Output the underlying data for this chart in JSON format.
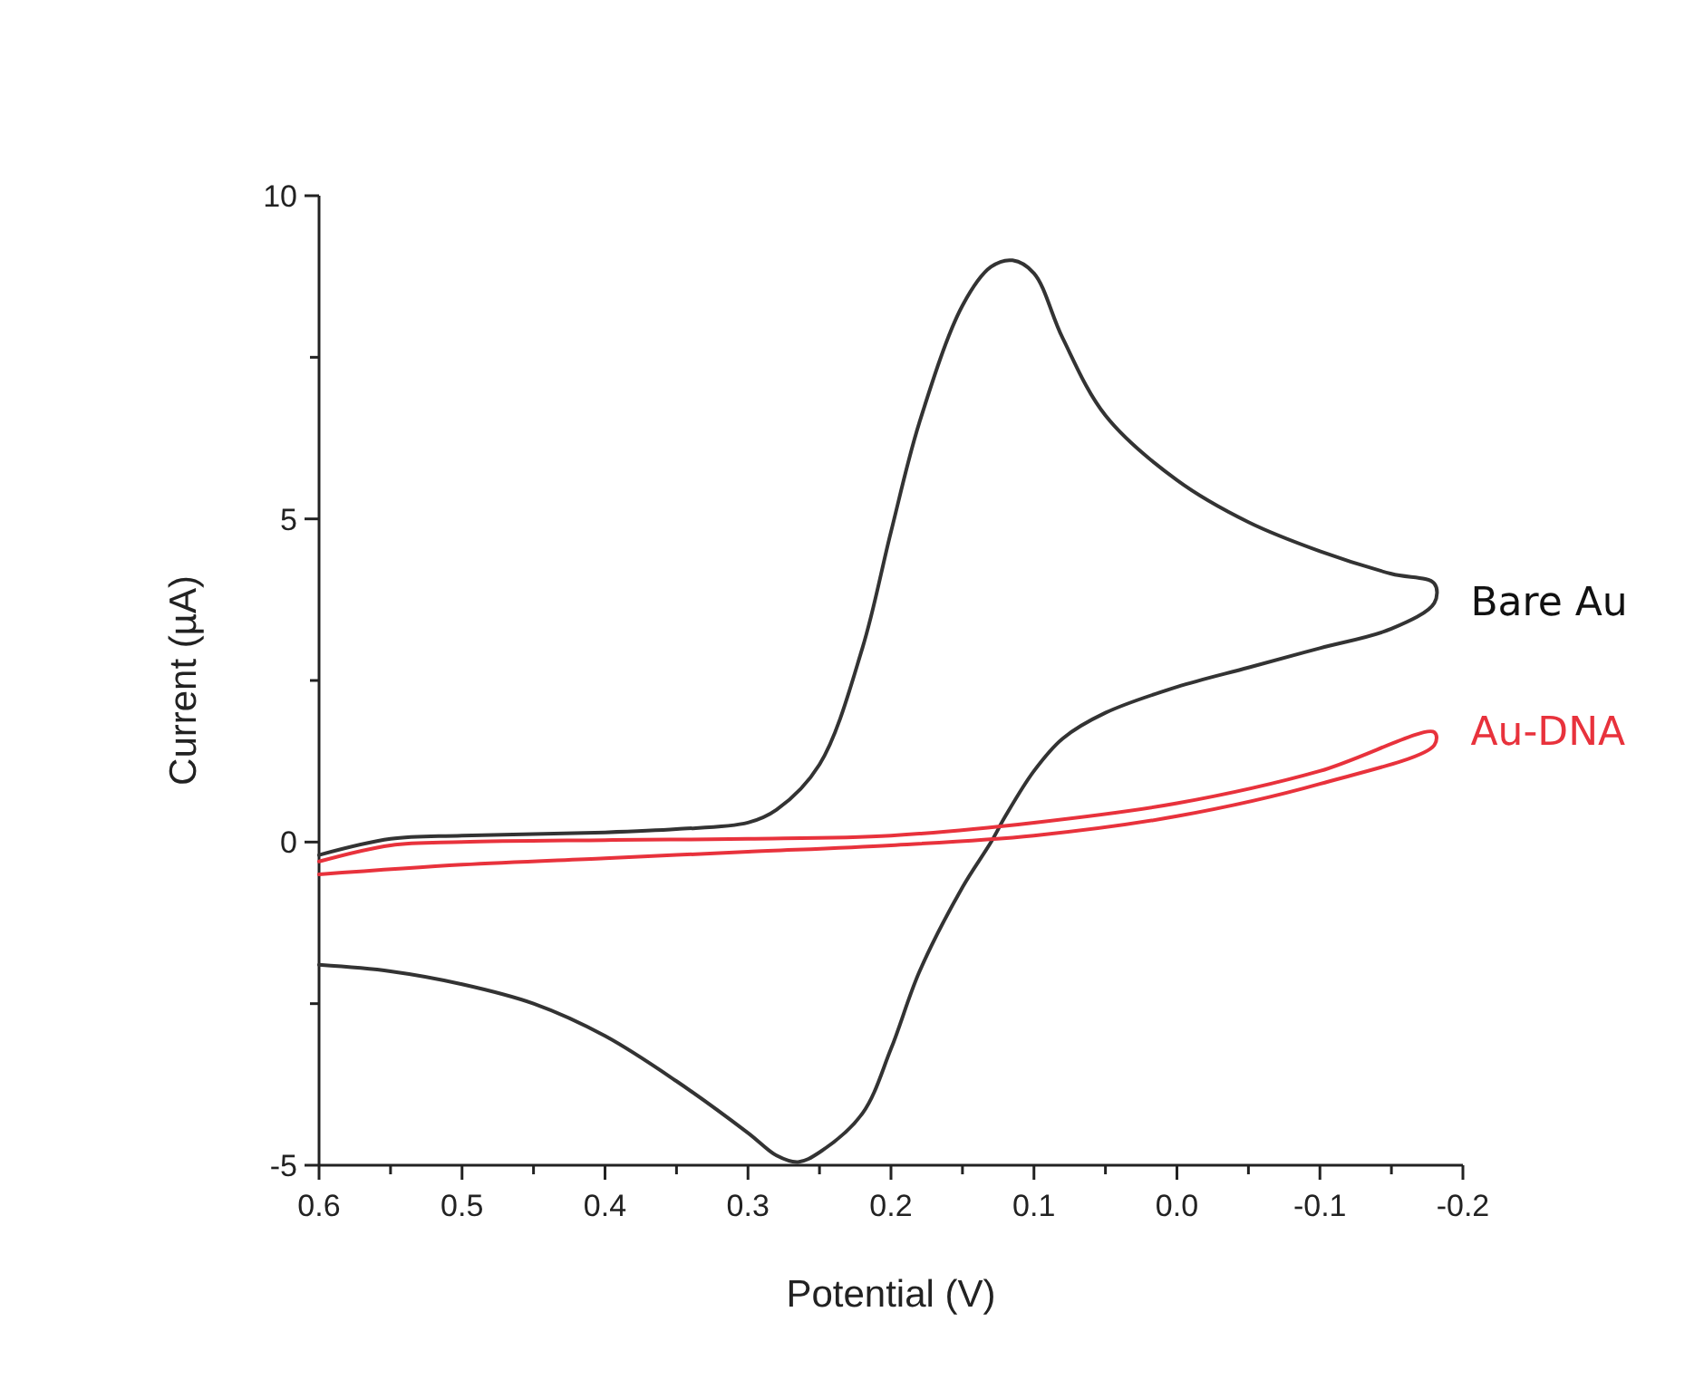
{
  "chart_data": {
    "type": "line",
    "xlabel": "Potential (V)",
    "ylabel": "Current (µA)",
    "xlim": [
      0.6,
      -0.2
    ],
    "ylim": [
      -5,
      10
    ],
    "xticks": [
      {
        "value": 0.6,
        "label": "0.6"
      },
      {
        "value": 0.55,
        "label": null
      },
      {
        "value": 0.5,
        "label": "0.5"
      },
      {
        "value": 0.45,
        "label": null
      },
      {
        "value": 0.4,
        "label": "0.4"
      },
      {
        "value": 0.35,
        "label": null
      },
      {
        "value": 0.3,
        "label": "0.3"
      },
      {
        "value": 0.25,
        "label": null
      },
      {
        "value": 0.2,
        "label": "0.2"
      },
      {
        "value": 0.15,
        "label": null
      },
      {
        "value": 0.1,
        "label": "0.1"
      },
      {
        "value": 0.05,
        "label": null
      },
      {
        "value": 0,
        "label": "0.0"
      },
      {
        "value": -0.05,
        "label": null
      },
      {
        "value": -0.1,
        "label": "-0.1"
      },
      {
        "value": -0.15,
        "label": null
      },
      {
        "value": -0.2,
        "label": "-0.2"
      }
    ],
    "yticks": [
      -5,
      {
        "value": -2.5,
        "label": null
      },
      0,
      {
        "value": 2.5,
        "label": null
      },
      5,
      {
        "value": 7.5,
        "label": null
      },
      10
    ],
    "grid": false,
    "marker": "none",
    "line_style": "solid",
    "series": [
      {
        "name": "Bare Au",
        "color": "#333333",
        "x": [
          0.6,
          0.55,
          0.5,
          0.4,
          0.35,
          0.3,
          0.28,
          0.25,
          0.22,
          0.2,
          0.18,
          0.15,
          0.13,
          0.115,
          0.1,
          0.08,
          0.05,
          0.0,
          -0.05,
          -0.1,
          -0.15,
          -0.18,
          -0.18,
          -0.15,
          -0.1,
          -0.05,
          0.0,
          0.05,
          0.08,
          0.1,
          0.12,
          0.13,
          0.15,
          0.18,
          0.2,
          0.22,
          0.25,
          0.265,
          0.28,
          0.3,
          0.35,
          0.4,
          0.45,
          0.5,
          0.55,
          0.6
        ],
        "values": [
          -0.2,
          0.05,
          0.1,
          0.15,
          0.2,
          0.3,
          0.5,
          1.2,
          3,
          4.8,
          6.5,
          8.3,
          8.9,
          9.0,
          8.8,
          7.8,
          6.6,
          5.6,
          4.95,
          4.5,
          4.15,
          4.0,
          3.7,
          3.3,
          3.0,
          2.7,
          2.4,
          2.0,
          1.6,
          1.1,
          0.4,
          0.0,
          -0.7,
          -2.0,
          -3.2,
          -4.2,
          -4.8,
          -4.95,
          -4.85,
          -4.5,
          -3.7,
          -3.0,
          -2.5,
          -2.2,
          -2.0,
          -1.9
        ]
      },
      {
        "name": "Au-DNA",
        "color": "#e8323c",
        "x": [
          0.6,
          0.55,
          0.5,
          0.4,
          0.3,
          0.2,
          0.1,
          0.0,
          -0.1,
          -0.18,
          -0.18,
          -0.1,
          0.0,
          0.1,
          0.2,
          0.3,
          0.4,
          0.5,
          0.6
        ],
        "values": [
          -0.3,
          -0.05,
          0.0,
          0.03,
          0.05,
          0.1,
          0.3,
          0.6,
          1.1,
          1.7,
          1.5,
          0.9,
          0.4,
          0.1,
          -0.05,
          -0.15,
          -0.25,
          -0.35,
          -0.5
        ]
      }
    ]
  }
}
